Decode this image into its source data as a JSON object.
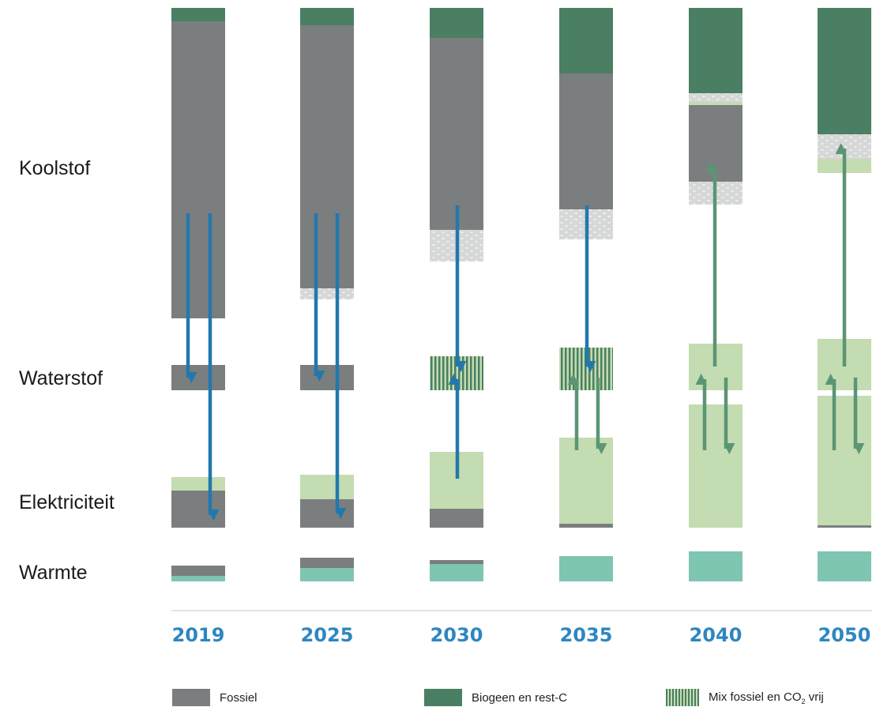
{
  "row_labels": {
    "koolstof": "Koolstof",
    "waterstof": "Waterstof",
    "elektriciteit": "Elektriciteit",
    "warmte": "Warmte"
  },
  "legend": {
    "fossiel": "Fossiel",
    "biogeen": "Biogeen en rest-C",
    "mix_prefix": "Mix fossiel en CO",
    "mix_sub": "2",
    "mix_suffix": " vrij"
  },
  "colors": {
    "fossiel": "#7b7e7f",
    "biogeen": "#4a7f63",
    "co2vrij": "#c4dcb1",
    "warmte": "#7ec5b2",
    "captured": "#d6d7d7",
    "arrow_blue": "#2278ad",
    "arrow_green": "#5b9574",
    "year_label": "#2e86c1"
  },
  "chart_data": {
    "type": "stacked-bar-flow",
    "categories": [
      "2019",
      "2025",
      "2030",
      "2035",
      "2040",
      "2050"
    ],
    "rows": [
      "Koolstof",
      "Waterstof",
      "Elektriciteit",
      "Warmte"
    ],
    "series": [
      {
        "name": "Koolstof",
        "stacks": [
          [
            {
              "kind": "biogeen",
              "value": 17
            },
            {
              "kind": "fossiel",
              "value": 376
            }
          ],
          [
            {
              "kind": "biogeen",
              "value": 22
            },
            {
              "kind": "fossiel",
              "value": 333
            },
            {
              "kind": "captured",
              "value": 14
            }
          ],
          [
            {
              "kind": "biogeen",
              "value": 38
            },
            {
              "kind": "fossiel",
              "value": 243
            },
            {
              "kind": "captured",
              "value": 40
            }
          ],
          [
            {
              "kind": "biogeen",
              "value": 83
            },
            {
              "kind": "fossiel",
              "value": 172
            },
            {
              "kind": "captured",
              "value": 38
            }
          ],
          [
            {
              "kind": "biogeen",
              "value": 108
            },
            {
              "kind": "captured",
              "value": 11
            },
            {
              "kind": "co2vrij",
              "value": 4
            },
            {
              "kind": "fossiel",
              "value": 97
            },
            {
              "kind": "captured",
              "value": 29
            }
          ],
          [
            {
              "kind": "biogeen",
              "value": 160
            },
            {
              "kind": "captured",
              "value": 31
            },
            {
              "kind": "co2vrij",
              "value": 18
            }
          ]
        ]
      },
      {
        "name": "Waterstof",
        "stacks": [
          [
            {
              "kind": "fossiel",
              "value": 32
            }
          ],
          [
            {
              "kind": "fossiel",
              "value": 32
            }
          ],
          [
            {
              "kind": "mix",
              "value": 43
            }
          ],
          [
            {
              "kind": "mix",
              "value": 54
            }
          ],
          [
            {
              "kind": "co2vrij",
              "value": 59
            }
          ],
          [
            {
              "kind": "co2vrij",
              "value": 65
            }
          ]
        ]
      },
      {
        "name": "Elektriciteit",
        "stacks": [
          [
            {
              "kind": "co2vrij",
              "value": 17
            },
            {
              "kind": "fossiel",
              "value": 47
            }
          ],
          [
            {
              "kind": "co2vrij",
              "value": 31
            },
            {
              "kind": "fossiel",
              "value": 36
            }
          ],
          [
            {
              "kind": "co2vrij",
              "value": 72
            },
            {
              "kind": "fossiel",
              "value": 24
            }
          ],
          [
            {
              "kind": "co2vrij",
              "value": 109
            },
            {
              "kind": "fossiel",
              "value": 5
            }
          ],
          [
            {
              "kind": "co2vrij",
              "value": 156
            }
          ],
          [
            {
              "kind": "co2vrij",
              "value": 164
            },
            {
              "kind": "fossiel",
              "value": 3
            }
          ]
        ]
      },
      {
        "name": "Warmte",
        "stacks": [
          [
            {
              "kind": "fossiel",
              "value": 13
            },
            {
              "kind": "warmte",
              "value": 7
            }
          ],
          [
            {
              "kind": "fossiel",
              "value": 13
            },
            {
              "kind": "warmte",
              "value": 17
            }
          ],
          [
            {
              "kind": "fossiel",
              "value": 5
            },
            {
              "kind": "warmte",
              "value": 22
            }
          ],
          [
            {
              "kind": "warmte",
              "value": 32
            }
          ],
          [
            {
              "kind": "warmte",
              "value": 38
            }
          ],
          [
            {
              "kind": "warmte",
              "value": 38
            }
          ]
        ]
      }
    ],
    "flows": [
      {
        "year": "2019",
        "from": "Koolstof",
        "to": "Waterstof",
        "color": "blue"
      },
      {
        "year": "2019",
        "from": "Koolstof",
        "to": "Elektriciteit",
        "color": "blue"
      },
      {
        "year": "2025",
        "from": "Koolstof",
        "to": "Waterstof",
        "color": "blue"
      },
      {
        "year": "2025",
        "from": "Koolstof",
        "to": "Elektriciteit",
        "color": "blue"
      },
      {
        "year": "2030",
        "from": "Koolstof",
        "to": "Waterstof",
        "color": "blue"
      },
      {
        "year": "2030",
        "from": "Elektriciteit",
        "to": "Waterstof",
        "color": "blue"
      },
      {
        "year": "2035",
        "from": "Koolstof",
        "to": "Waterstof",
        "color": "blue"
      },
      {
        "year": "2035",
        "from": "Elektriciteit",
        "to": "Waterstof",
        "color": "green"
      },
      {
        "year": "2035",
        "from": "Waterstof",
        "to": "Elektriciteit",
        "color": "green"
      },
      {
        "year": "2040",
        "from": "Waterstof",
        "to": "Koolstof",
        "color": "green"
      },
      {
        "year": "2040",
        "from": "Elektriciteit",
        "to": "Waterstof",
        "color": "green"
      },
      {
        "year": "2040",
        "from": "Waterstof",
        "to": "Elektriciteit",
        "color": "green"
      },
      {
        "year": "2050",
        "from": "Waterstof",
        "to": "Koolstof",
        "color": "green"
      },
      {
        "year": "2050",
        "from": "Elektriciteit",
        "to": "Waterstof",
        "color": "green"
      },
      {
        "year": "2050",
        "from": "Waterstof",
        "to": "Elektriciteit",
        "color": "green"
      }
    ],
    "legend_placement": "bottom",
    "grid": false
  }
}
